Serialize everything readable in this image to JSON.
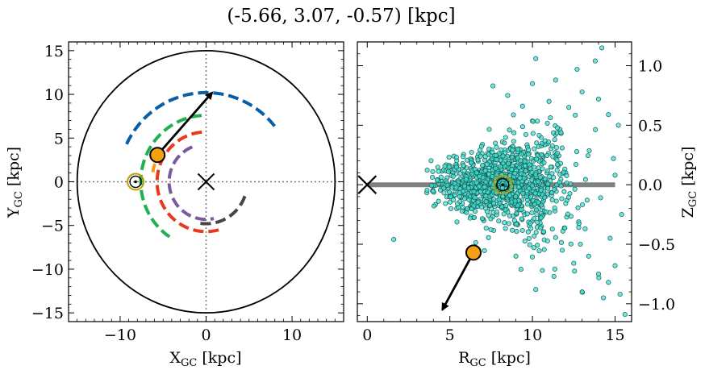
{
  "title": "(-5.66, 3.07, -0.57) [kpc]",
  "chart_data": [
    {
      "type": "scatter",
      "panel": "left",
      "xlabel": "X",
      "xlabel_sub": "GC",
      "xlabel_unit": " [kpc]",
      "ylabel": "Y",
      "ylabel_sub": "GC",
      "ylabel_unit": " [kpc]",
      "xlim": [
        -16,
        16
      ],
      "ylim": [
        -16,
        16
      ],
      "xticks": [
        -10,
        0,
        10
      ],
      "xtick_labels": [
        "−10",
        "0",
        "10"
      ],
      "yticks": [
        -15,
        -10,
        -5,
        0,
        5,
        10,
        15
      ],
      "ytick_labels": [
        "−15",
        "−10",
        "−5",
        "0",
        "5",
        "10",
        "15"
      ],
      "outer_circle_radius": 15,
      "galactic_center": [
        0,
        0
      ],
      "sun": [
        -8.2,
        0
      ],
      "object": [
        -5.66,
        3.07
      ],
      "velocity_arrow_end": [
        0.7,
        10.2
      ],
      "spiral_arms": [
        {
          "color": "#0a5ea8",
          "radius": 10.2,
          "theta_deg": [
            155,
            36
          ]
        },
        {
          "color": "#1fb150",
          "radius": 7.6,
          "theta_deg": [
            94,
            236
          ]
        },
        {
          "color": "#f39c12",
          "radius": 6.3,
          "theta_deg": [
            145,
            170
          ]
        },
        {
          "color": "#e8391c",
          "radius": 5.7,
          "theta_deg": [
            95,
            290
          ]
        },
        {
          "color": "#7a5a9e",
          "radius": 4.3,
          "theta_deg": [
            112,
            282
          ]
        },
        {
          "color": "#454545",
          "radius": 4.8,
          "theta_deg": [
            -20,
            -100
          ]
        }
      ]
    },
    {
      "type": "scatter",
      "panel": "right",
      "xlabel": "R",
      "xlabel_sub": "GC",
      "xlabel_unit": " [kpc]",
      "ylabel": "Z",
      "ylabel_sub": "GC",
      "ylabel_unit": " [kpc]",
      "xlim": [
        -0.6,
        16
      ],
      "ylim": [
        -1.15,
        1.2
      ],
      "xticks": [
        0,
        5,
        10,
        15
      ],
      "xtick_labels": [
        "0",
        "5",
        "10",
        "15"
      ],
      "yticks": [
        -1.0,
        -0.5,
        0.0,
        0.5,
        1.0
      ],
      "ytick_labels": [
        "−1.0",
        "−0.5",
        "0.0",
        "0.5",
        "1.0"
      ],
      "disk_line": {
        "x": [
          0,
          15
        ],
        "z": 0
      },
      "galactic_center": [
        0,
        0
      ],
      "sun": [
        8.2,
        0
      ],
      "object": [
        6.43,
        -0.57
      ],
      "velocity_arrow_end": [
        4.55,
        -1.05
      ],
      "point_color": "#40e0d0",
      "outliers": [
        [
          10.2,
          1.06
        ],
        [
          14.2,
          1.15
        ],
        [
          13.8,
          1.04
        ],
        [
          11.4,
          0.88
        ],
        [
          12.7,
          0.97
        ],
        [
          10.0,
          0.85
        ],
        [
          7.6,
          0.83
        ],
        [
          8.5,
          0.75
        ],
        [
          13.0,
          0.78
        ],
        [
          14.0,
          0.72
        ],
        [
          14.6,
          0.59
        ],
        [
          15.2,
          0.5
        ],
        [
          11.0,
          0.7
        ],
        [
          9.4,
          0.66
        ],
        [
          12.2,
          0.65
        ],
        [
          1.6,
          -0.46
        ],
        [
          15.6,
          -1.09
        ],
        [
          14.3,
          -0.95
        ],
        [
          15.3,
          -0.92
        ],
        [
          13.0,
          -0.9
        ],
        [
          14.6,
          -0.82
        ],
        [
          14.0,
          -0.75
        ],
        [
          11.3,
          -0.77
        ],
        [
          10.2,
          -0.88
        ],
        [
          12.5,
          -0.66
        ],
        [
          13.4,
          -0.6
        ],
        [
          15.0,
          -0.68
        ],
        [
          9.0,
          -0.6
        ],
        [
          11.8,
          -0.55
        ],
        [
          14.7,
          -0.45
        ],
        [
          12.9,
          -0.5
        ],
        [
          10.6,
          -0.72
        ],
        [
          15.0,
          0.08
        ],
        [
          15.4,
          -0.25
        ],
        [
          14.9,
          0.22
        ]
      ]
    }
  ]
}
